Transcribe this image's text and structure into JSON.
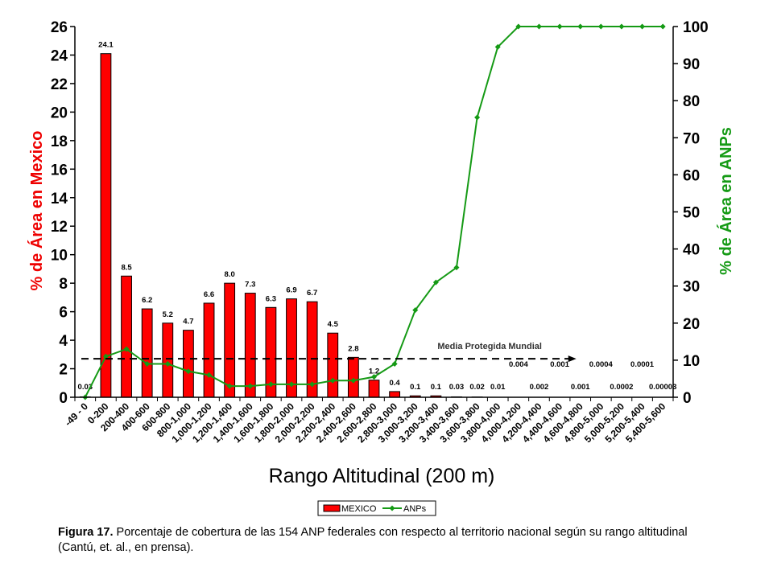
{
  "chart_data": {
    "type": "bar",
    "categories": [
      "-49 - 0",
      "0-200",
      "200-400",
      "400-600",
      "600-800",
      "800-1,000",
      "1,000-1,200",
      "1,200-1,400",
      "1,400-1,600",
      "1,600-1,800",
      "1,800-2,000",
      "2,000-2,200",
      "2,200-2,400",
      "2,400-2,600",
      "2,600-2,800",
      "2,800-3,000",
      "3,000-3,200",
      "3,200-3,400",
      "3,400-3,600",
      "3,600-3,800",
      "3,800-4,000",
      "4,000-4,200",
      "4,200-4,400",
      "4,400-4,600",
      "4,600-4,800",
      "4,800-5,000",
      "5,000-5,200",
      "5,200-5,400",
      "5,400-5,600"
    ],
    "series": [
      {
        "name": "MEXICO",
        "type": "bar",
        "axis": "left",
        "color": "#ff0000",
        "values": [
          0.03,
          24.1,
          8.5,
          6.2,
          5.2,
          4.7,
          6.6,
          8.0,
          7.3,
          6.3,
          6.9,
          6.7,
          4.5,
          2.8,
          1.2,
          0.4,
          0.1,
          0.1,
          0.03,
          0.02,
          0.01,
          0.004,
          0.002,
          0.001,
          0.001,
          0.0004,
          0.0002,
          0.0001,
          3e-05
        ],
        "labels": [
          "0.03",
          "24.1",
          "8.5",
          "6.2",
          "5.2",
          "4.7",
          "6.6",
          "8.0",
          "7.3",
          "6.3",
          "6.9",
          "6.7",
          "4.5",
          "2.8",
          "1.2",
          "0.4",
          "0.1",
          "0.1",
          "0.03",
          "0.02",
          "0.01",
          "0.004",
          "0.002",
          "0.001",
          "0.001",
          "0.0004",
          "0.0002",
          "0.0001",
          "0.00003"
        ]
      },
      {
        "name": "ANPs",
        "type": "line",
        "axis": "right",
        "color": "#159a15",
        "values": [
          0,
          11,
          13,
          9,
          9,
          7,
          6,
          3,
          3,
          3.5,
          3.5,
          3.5,
          4.5,
          4.5,
          5.5,
          9,
          23.5,
          31,
          35,
          75.5,
          94.5,
          100,
          100,
          100,
          100,
          100,
          100,
          100,
          100
        ]
      }
    ],
    "ylabel": "% de Área en Mexico",
    "y2label": "% de Área en ANPs",
    "xlabel": "Rango Altitudinal (200 m)",
    "ylim": [
      0,
      26
    ],
    "y2lim": [
      0,
      100
    ],
    "yticks": [
      0,
      2,
      4,
      6,
      8,
      10,
      12,
      14,
      16,
      18,
      20,
      22,
      24,
      26
    ],
    "y2ticks": [
      0,
      10,
      20,
      30,
      40,
      50,
      60,
      70,
      80,
      90,
      100
    ],
    "annotation": {
      "text": "Media Protegida Mundial",
      "value": 2.7,
      "from_category": 0,
      "to_category": 24,
      "color": "#000000"
    },
    "legend_position": "bottom-center"
  },
  "caption": {
    "label": "Figura 17.",
    "text": " Porcentaje de cobertura de las 154 ANP federales con respecto al territorio nacional según su rango altitudinal (Cantú, et. al., en prensa)."
  }
}
